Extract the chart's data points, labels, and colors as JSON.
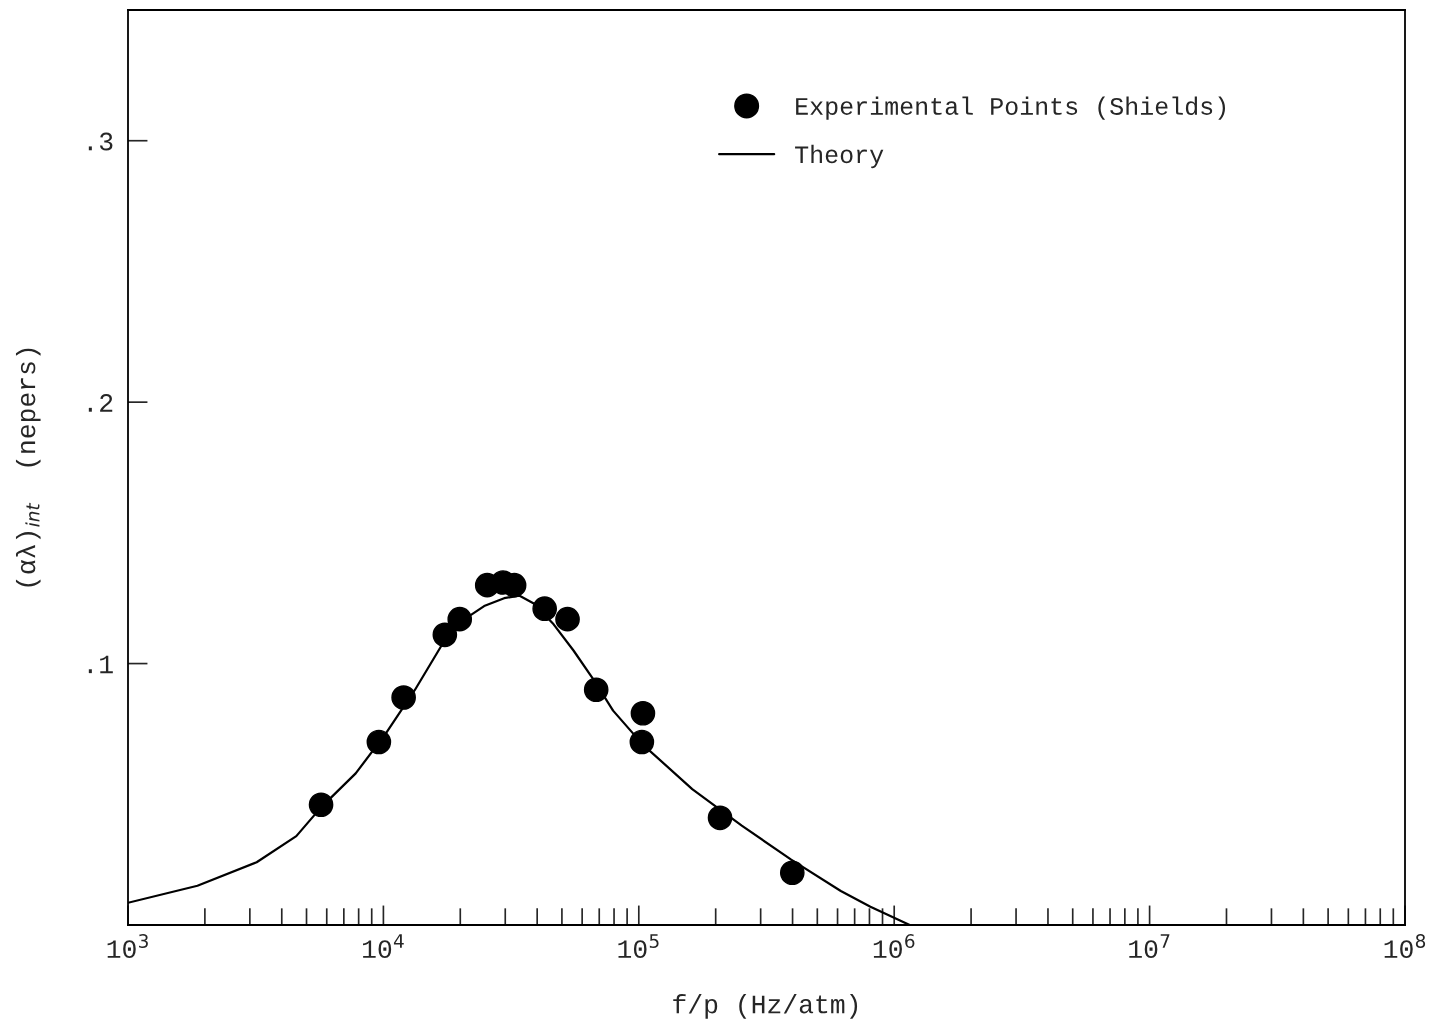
{
  "chart_data": {
    "type": "scatter",
    "xlabel": "f/p (Hz/atm)",
    "ylabel": "(αλ)$_{int}$  (nepers)",
    "log": "x",
    "xlim": [
      1000,
      100000000
    ],
    "xticks": [
      {
        "value": 1000,
        "label": "10$^{3}$"
      },
      {
        "value": 10000,
        "label": "10$^{4}$"
      },
      {
        "value": 100000,
        "label": "10$^{5}$"
      },
      {
        "value": 1000000,
        "label": "10$^{6}$"
      },
      {
        "value": 10000000,
        "label": "10$^{7}$"
      },
      {
        "value": 100000000,
        "label": "10$^{8}$"
      }
    ],
    "ylim": [
      0,
      0.35
    ],
    "yticks": [
      {
        "value": 0.1,
        "label": ".1"
      },
      {
        "value": 0.2,
        "label": ".2"
      },
      {
        "value": 0.3,
        "label": ".3"
      }
    ],
    "grid": false,
    "legend": "top right",
    "series": [
      {
        "name": "Experimental Points (Shields)",
        "marker": "circle",
        "color": "#000000",
        "x": [
          5700,
          9600,
          12000,
          17400,
          19900,
          25500,
          29400,
          32500,
          42800,
          52600,
          68100,
          103800,
          102800,
          208000,
          399000
        ],
        "values": [
          0.046,
          0.07,
          0.087,
          0.111,
          0.117,
          0.13,
          0.131,
          0.13,
          0.121,
          0.117,
          0.09,
          0.081,
          0.07,
          0.041,
          0.02
        ]
      },
      {
        "name": "Theory",
        "type": "line",
        "marker": "none",
        "line_style": "solid",
        "color": "#000000",
        "x": [
          1000,
          1870,
          3190,
          4560,
          5700,
          7790,
          10180,
          13300,
          17400,
          20800,
          24800,
          29700,
          34000,
          38800,
          46400,
          55500,
          66400,
          79300,
          103700,
          161900,
          253000,
          395000,
          618000,
          807000,
          1150000
        ],
        "values": [
          0.0085,
          0.015,
          0.024,
          0.034,
          0.045,
          0.058,
          0.073,
          0.09,
          0.109,
          0.117,
          0.122,
          0.125,
          0.126,
          0.123,
          0.115,
          0.105,
          0.094,
          0.082,
          0.069,
          0.052,
          0.038,
          0.025,
          0.013,
          0.007,
          0.0
        ]
      }
    ]
  }
}
